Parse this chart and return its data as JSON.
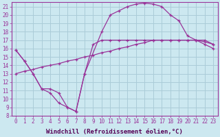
{
  "bg_color": "#cce8f0",
  "grid_color": "#aaccd8",
  "line_color": "#993399",
  "xlim": [
    -0.5,
    23.5
  ],
  "ylim": [
    8,
    21.5
  ],
  "xticks": [
    0,
    1,
    2,
    3,
    4,
    5,
    6,
    7,
    8,
    9,
    10,
    11,
    12,
    13,
    14,
    15,
    16,
    17,
    18,
    19,
    20,
    21,
    22,
    23
  ],
  "yticks": [
    8,
    9,
    10,
    11,
    12,
    13,
    14,
    15,
    16,
    17,
    18,
    19,
    20,
    21
  ],
  "xlabel": "Windchill (Refroidissement éolien,°C)",
  "line1_x": [
    0,
    1,
    2,
    3,
    4,
    5,
    6,
    7,
    8,
    10,
    11,
    12,
    13,
    14,
    15,
    16,
    17,
    18,
    19,
    20,
    21,
    22,
    23
  ],
  "line1_y": [
    15.8,
    14.5,
    13.0,
    11.2,
    11.2,
    10.7,
    9.0,
    8.5,
    13.0,
    18.0,
    20.0,
    20.5,
    21.0,
    21.3,
    21.4,
    21.3,
    21.0,
    20.0,
    19.3,
    17.5,
    17.0,
    16.5,
    16.0
  ],
  "line2_x": [
    0,
    1,
    2,
    3,
    4,
    5,
    6,
    7,
    8,
    9,
    10,
    11,
    12,
    13,
    14,
    15,
    16,
    17,
    18,
    19,
    20,
    21,
    22,
    23
  ],
  "line2_y": [
    15.8,
    14.5,
    13.0,
    11.2,
    10.7,
    9.5,
    9.0,
    8.5,
    13.0,
    16.5,
    17.0,
    17.0,
    17.0,
    17.0,
    17.0,
    17.0,
    17.0,
    17.0,
    17.0,
    17.0,
    17.0,
    17.0,
    17.0,
    16.5
  ],
  "line3_x": [
    0,
    1,
    2,
    3,
    4,
    5,
    6,
    7,
    8,
    9,
    10,
    11,
    12,
    13,
    14,
    15,
    16,
    17,
    18,
    19,
    20,
    21,
    22,
    23
  ],
  "line3_y": [
    13.0,
    13.3,
    13.5,
    13.8,
    14.0,
    14.2,
    14.5,
    14.7,
    15.0,
    15.2,
    15.5,
    15.7,
    16.0,
    16.2,
    16.5,
    16.7,
    17.0,
    17.0,
    17.0,
    17.0,
    17.0,
    17.0,
    16.8,
    16.5
  ],
  "tick_fontsize": 5.5,
  "label_fontsize": 6.5
}
